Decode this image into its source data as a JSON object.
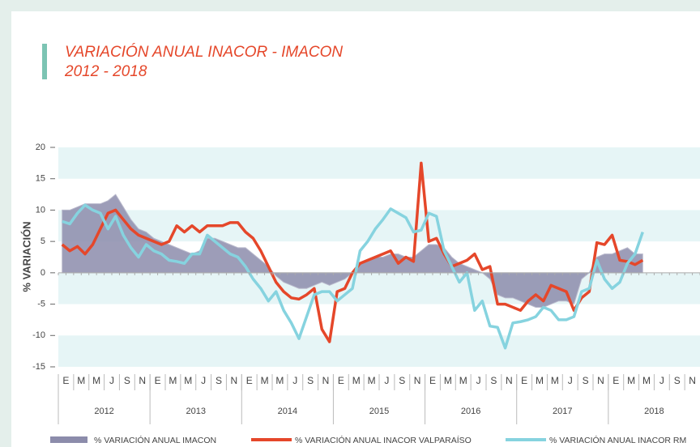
{
  "chart_data": {
    "type": "line",
    "title": "VARIACIÓN ANUAL INACOR - IMACON",
    "subtitle": "2012 - 2018",
    "y_label": "% VARIACIÓN",
    "categories": [
      "E",
      null,
      "M",
      null,
      "M",
      null,
      "J",
      null,
      "S",
      null,
      "N",
      null,
      "E",
      null,
      "M",
      null,
      "M",
      null,
      "J",
      null,
      "S",
      null,
      "N",
      null,
      "E",
      null,
      "M",
      null,
      "M",
      null,
      "J",
      null,
      "S",
      null,
      "N",
      null,
      "E",
      null,
      "M",
      null,
      "M",
      null,
      "J",
      null,
      "S",
      null,
      "N",
      null,
      "E",
      null,
      "M",
      null,
      "M",
      null,
      "J",
      null,
      "S",
      null,
      "N",
      null,
      "E",
      null,
      "M",
      null,
      "M",
      null,
      "J",
      null,
      "S",
      null,
      "N",
      null,
      "E",
      null,
      "M",
      null,
      "M",
      null,
      "J",
      null,
      "S",
      null,
      "N",
      null
    ],
    "years": [
      "2012",
      "2013",
      "2014",
      "2015",
      "2016",
      "2017",
      "2018"
    ],
    "ylim": [
      -15,
      20
    ],
    "yticks": [
      -15,
      -10,
      -5,
      0,
      5,
      10,
      15,
      20
    ],
    "series": [
      {
        "name": "% VARIACIÓN ANUAL IMACON",
        "kind": "area",
        "color": "#8c8cab",
        "values": [
          10,
          10,
          10.5,
          11,
          11,
          11,
          11.5,
          12.5,
          10.5,
          8.5,
          7,
          6.5,
          5.5,
          5,
          4.5,
          4,
          3.5,
          3,
          3.5,
          5.5,
          5.5,
          5,
          4.5,
          4,
          4,
          3,
          2,
          1,
          -0.5,
          -1.5,
          -2,
          -2.5,
          -2.5,
          -2,
          -1.5,
          -2,
          -1.5,
          -1,
          0,
          1.5,
          2,
          2.5,
          2.5,
          3,
          3,
          2.5,
          2.5,
          3.5,
          4.5,
          4.5,
          4,
          2.5,
          1.5,
          1,
          0.5,
          0,
          -1,
          -3.5,
          -4,
          -4,
          -4.5,
          -5,
          -5.5,
          -5.5,
          -5,
          -4.5,
          -4.5,
          -5,
          -1,
          0,
          2.5,
          3,
          3,
          3.5,
          4,
          3,
          3,
          null,
          null,
          null,
          null,
          null,
          null,
          null
        ]
      },
      {
        "name": "% VARIACIÓN ANUAL INACOR VALPARAÍSO",
        "kind": "line",
        "color": "#e5472a",
        "values": [
          4.5,
          3.5,
          4.2,
          3,
          4.5,
          7,
          9.5,
          10,
          8.5,
          7,
          6,
          5.5,
          5,
          4.5,
          5,
          7.5,
          6.5,
          7.5,
          6.5,
          7.5,
          7.5,
          7.5,
          8,
          8,
          6.5,
          5.5,
          3.5,
          1,
          -1.5,
          -3,
          -4,
          -4.2,
          -3.5,
          -2.5,
          -9,
          -11,
          -3,
          -2.5,
          0,
          1.5,
          2,
          2.5,
          3,
          3.5,
          1.5,
          2.5,
          1.8,
          17.5,
          5,
          5.5,
          3,
          1,
          1.5,
          2,
          3,
          0.5,
          1,
          -5,
          -5,
          -5.5,
          -6,
          -4.5,
          -3.5,
          -4.5,
          -2,
          -2.5,
          -3,
          -6,
          -4,
          -3,
          4.8,
          4.5,
          6,
          2,
          1.8,
          1.3,
          2,
          null,
          null,
          null,
          null,
          null,
          null,
          null
        ]
      },
      {
        "name": "% VARIACIÓN ANUAL INACOR RM",
        "kind": "line",
        "color": "#86d3df",
        "values": [
          8.2,
          7.8,
          9.5,
          10.8,
          10,
          9.5,
          7,
          9,
          6,
          4,
          2.5,
          4.5,
          3.5,
          3,
          2,
          1.8,
          1.5,
          3,
          3,
          6,
          5,
          4,
          3,
          2.5,
          1,
          -1,
          -2.5,
          -4.5,
          -3,
          -6,
          -8,
          -10.5,
          -7,
          -3.5,
          -3,
          -3,
          -4.5,
          -3.5,
          -2.5,
          3.5,
          5,
          7,
          8.5,
          10.2,
          9.5,
          8.8,
          6.5,
          6.8,
          9.5,
          9,
          3.5,
          1,
          -1.5,
          0,
          -6,
          -4.5,
          -8.5,
          -8.7,
          -12,
          -8,
          -7.8,
          -7.5,
          -7,
          -5.5,
          -6,
          -7.5,
          -7.5,
          -7,
          -3,
          -2.5,
          2,
          -1,
          -2.5,
          -1.5,
          1.5,
          3,
          6.5,
          null,
          null,
          null,
          null,
          null,
          null,
          null
        ]
      }
    ]
  }
}
